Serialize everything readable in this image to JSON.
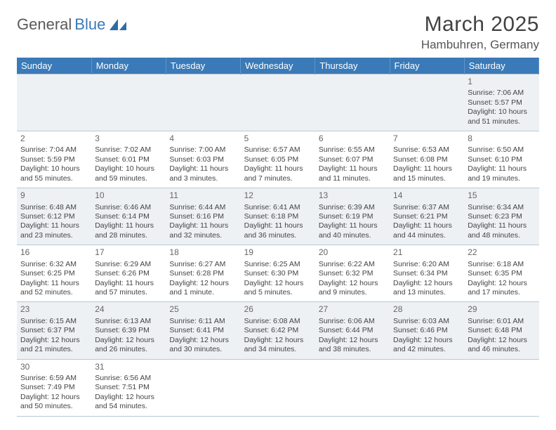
{
  "brand": {
    "part1": "General",
    "part2": "Blue"
  },
  "title": "March 2025",
  "location": "Hambuhren, Germany",
  "colors": {
    "header_bg": "#3a7ab8",
    "header_text": "#ffffff",
    "grid_border": "#b8c8d8",
    "row_alt_bg": "#eef1f4",
    "row_bg": "#ffffff",
    "text": "#444444"
  },
  "day_headers": [
    "Sunday",
    "Monday",
    "Tuesday",
    "Wednesday",
    "Thursday",
    "Friday",
    "Saturday"
  ],
  "weeks": [
    [
      null,
      null,
      null,
      null,
      null,
      null,
      {
        "n": "1",
        "sunrise": "7:06 AM",
        "sunset": "5:57 PM",
        "daylight": "10 hours and 51 minutes."
      }
    ],
    [
      {
        "n": "2",
        "sunrise": "7:04 AM",
        "sunset": "5:59 PM",
        "daylight": "10 hours and 55 minutes."
      },
      {
        "n": "3",
        "sunrise": "7:02 AM",
        "sunset": "6:01 PM",
        "daylight": "10 hours and 59 minutes."
      },
      {
        "n": "4",
        "sunrise": "7:00 AM",
        "sunset": "6:03 PM",
        "daylight": "11 hours and 3 minutes."
      },
      {
        "n": "5",
        "sunrise": "6:57 AM",
        "sunset": "6:05 PM",
        "daylight": "11 hours and 7 minutes."
      },
      {
        "n": "6",
        "sunrise": "6:55 AM",
        "sunset": "6:07 PM",
        "daylight": "11 hours and 11 minutes."
      },
      {
        "n": "7",
        "sunrise": "6:53 AM",
        "sunset": "6:08 PM",
        "daylight": "11 hours and 15 minutes."
      },
      {
        "n": "8",
        "sunrise": "6:50 AM",
        "sunset": "6:10 PM",
        "daylight": "11 hours and 19 minutes."
      }
    ],
    [
      {
        "n": "9",
        "sunrise": "6:48 AM",
        "sunset": "6:12 PM",
        "daylight": "11 hours and 23 minutes."
      },
      {
        "n": "10",
        "sunrise": "6:46 AM",
        "sunset": "6:14 PM",
        "daylight": "11 hours and 28 minutes."
      },
      {
        "n": "11",
        "sunrise": "6:44 AM",
        "sunset": "6:16 PM",
        "daylight": "11 hours and 32 minutes."
      },
      {
        "n": "12",
        "sunrise": "6:41 AM",
        "sunset": "6:18 PM",
        "daylight": "11 hours and 36 minutes."
      },
      {
        "n": "13",
        "sunrise": "6:39 AM",
        "sunset": "6:19 PM",
        "daylight": "11 hours and 40 minutes."
      },
      {
        "n": "14",
        "sunrise": "6:37 AM",
        "sunset": "6:21 PM",
        "daylight": "11 hours and 44 minutes."
      },
      {
        "n": "15",
        "sunrise": "6:34 AM",
        "sunset": "6:23 PM",
        "daylight": "11 hours and 48 minutes."
      }
    ],
    [
      {
        "n": "16",
        "sunrise": "6:32 AM",
        "sunset": "6:25 PM",
        "daylight": "11 hours and 52 minutes."
      },
      {
        "n": "17",
        "sunrise": "6:29 AM",
        "sunset": "6:26 PM",
        "daylight": "11 hours and 57 minutes."
      },
      {
        "n": "18",
        "sunrise": "6:27 AM",
        "sunset": "6:28 PM",
        "daylight": "12 hours and 1 minute."
      },
      {
        "n": "19",
        "sunrise": "6:25 AM",
        "sunset": "6:30 PM",
        "daylight": "12 hours and 5 minutes."
      },
      {
        "n": "20",
        "sunrise": "6:22 AM",
        "sunset": "6:32 PM",
        "daylight": "12 hours and 9 minutes."
      },
      {
        "n": "21",
        "sunrise": "6:20 AM",
        "sunset": "6:34 PM",
        "daylight": "12 hours and 13 minutes."
      },
      {
        "n": "22",
        "sunrise": "6:18 AM",
        "sunset": "6:35 PM",
        "daylight": "12 hours and 17 minutes."
      }
    ],
    [
      {
        "n": "23",
        "sunrise": "6:15 AM",
        "sunset": "6:37 PM",
        "daylight": "12 hours and 21 minutes."
      },
      {
        "n": "24",
        "sunrise": "6:13 AM",
        "sunset": "6:39 PM",
        "daylight": "12 hours and 26 minutes."
      },
      {
        "n": "25",
        "sunrise": "6:11 AM",
        "sunset": "6:41 PM",
        "daylight": "12 hours and 30 minutes."
      },
      {
        "n": "26",
        "sunrise": "6:08 AM",
        "sunset": "6:42 PM",
        "daylight": "12 hours and 34 minutes."
      },
      {
        "n": "27",
        "sunrise": "6:06 AM",
        "sunset": "6:44 PM",
        "daylight": "12 hours and 38 minutes."
      },
      {
        "n": "28",
        "sunrise": "6:03 AM",
        "sunset": "6:46 PM",
        "daylight": "12 hours and 42 minutes."
      },
      {
        "n": "29",
        "sunrise": "6:01 AM",
        "sunset": "6:48 PM",
        "daylight": "12 hours and 46 minutes."
      }
    ],
    [
      {
        "n": "30",
        "sunrise": "6:59 AM",
        "sunset": "7:49 PM",
        "daylight": "12 hours and 50 minutes."
      },
      {
        "n": "31",
        "sunrise": "6:56 AM",
        "sunset": "7:51 PM",
        "daylight": "12 hours and 54 minutes."
      },
      null,
      null,
      null,
      null,
      null
    ]
  ]
}
